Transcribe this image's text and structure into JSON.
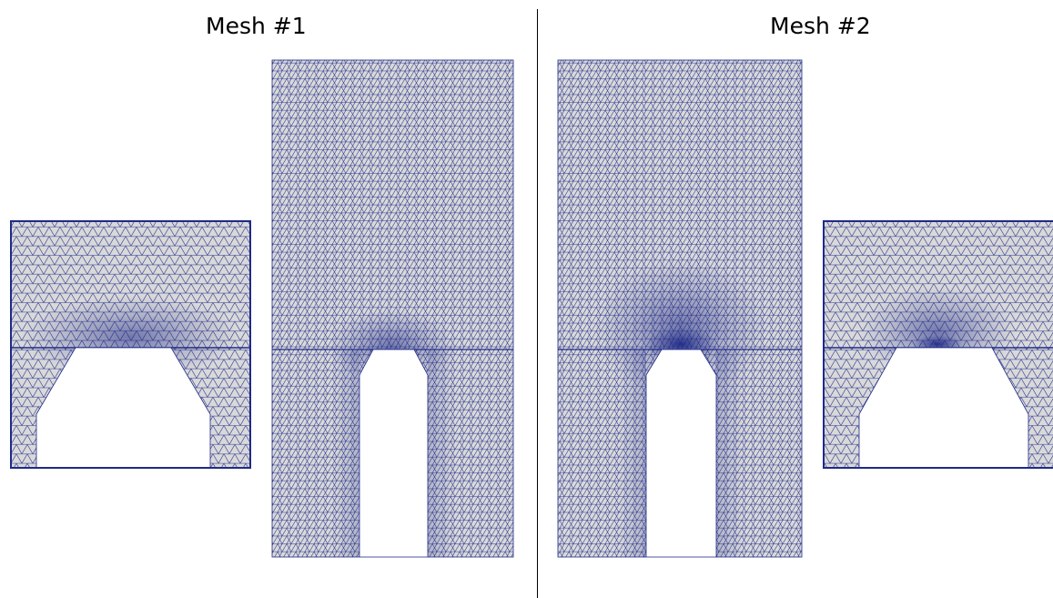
{
  "panels": [
    {
      "title": "Mesh #1"
    },
    {
      "title": "Mesh #2"
    }
  ],
  "colors": {
    "mesh_fill": "#d9d9d9",
    "mesh_edges": "#1f2a87",
    "background": "#ffffff",
    "divider": "#000000"
  }
}
